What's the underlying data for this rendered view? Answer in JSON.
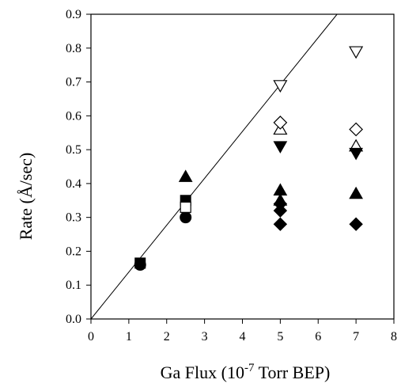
{
  "chart_data": {
    "type": "scatter",
    "xlabel": {
      "prefix": "Ga Flux (10",
      "exponent": "-7",
      "suffix": " Torr BEP)"
    },
    "ylabel": "Rate (Å/sec)",
    "xlim": [
      0,
      8
    ],
    "ylim": [
      0.0,
      0.9
    ],
    "x_ticks": [
      "0",
      "1",
      "2",
      "3",
      "4",
      "5",
      "6",
      "7",
      "8"
    ],
    "y_ticks": [
      "0.0",
      "0.1",
      "0.2",
      "0.3",
      "0.4",
      "0.5",
      "0.6",
      "0.7",
      "0.8",
      "0.9"
    ],
    "grid": false,
    "legend": "none",
    "reference_line": {
      "x": [
        0,
        6.5
      ],
      "y": [
        0,
        0.9
      ]
    },
    "series": [
      {
        "marker": "circle",
        "fill": "filled",
        "x": [
          1.3,
          2.5
        ],
        "y": [
          0.16,
          0.3
        ]
      },
      {
        "marker": "square",
        "fill": "filled",
        "x": [
          1.3,
          2.5
        ],
        "y": [
          0.165,
          0.35
        ]
      },
      {
        "marker": "square",
        "fill": "open",
        "x": [
          2.5
        ],
        "y": [
          0.33
        ]
      },
      {
        "marker": "triangle-up",
        "fill": "filled",
        "x": [
          2.5,
          5,
          5,
          7
        ],
        "y": [
          0.42,
          0.38,
          0.35,
          0.37
        ]
      },
      {
        "marker": "triangle-up",
        "fill": "open",
        "x": [
          5,
          7
        ],
        "y": [
          0.56,
          0.51
        ]
      },
      {
        "marker": "triangle-down",
        "fill": "filled",
        "x": [
          5,
          7
        ],
        "y": [
          0.51,
          0.49
        ]
      },
      {
        "marker": "triangle-down",
        "fill": "open",
        "x": [
          5,
          7
        ],
        "y": [
          0.69,
          0.79
        ]
      },
      {
        "marker": "diamond",
        "fill": "filled",
        "x": [
          5,
          5,
          5,
          7
        ],
        "y": [
          0.34,
          0.32,
          0.28,
          0.28
        ]
      },
      {
        "marker": "diamond",
        "fill": "open",
        "x": [
          5,
          7
        ],
        "y": [
          0.58,
          0.56
        ]
      }
    ]
  }
}
